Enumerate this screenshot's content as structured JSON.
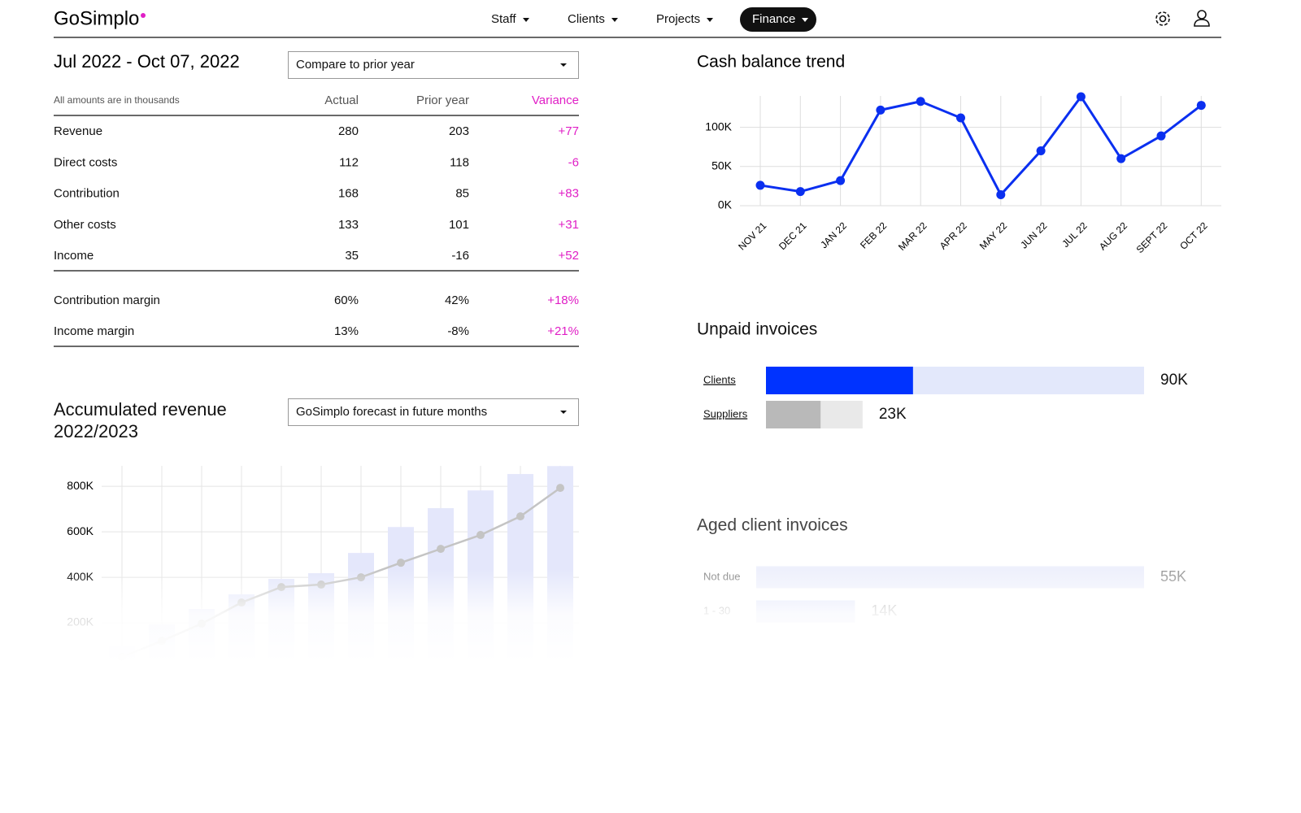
{
  "nav": {
    "brand": "GoSimplo",
    "items": [
      "Staff",
      "Clients",
      "Projects",
      "Finance"
    ],
    "active": 3
  },
  "period": {
    "title": "Jul 2022 - Oct 07, 2022",
    "compare": "Compare to prior year"
  },
  "table": {
    "note": "All amounts are in thousands",
    "headers": [
      "Actual",
      "Prior year",
      "Variance"
    ],
    "rows": [
      [
        "Revenue",
        "280",
        "203",
        "+77"
      ],
      [
        "Direct costs",
        "112",
        "118",
        "-6"
      ],
      [
        "Contribution",
        "168",
        "85",
        "+83"
      ],
      [
        "Other costs",
        "133",
        "101",
        "+31"
      ],
      [
        "Income",
        "35",
        "-16",
        "+52"
      ]
    ],
    "margin_rows": [
      [
        "Contribution margin",
        "60%",
        "42%",
        "+18%"
      ],
      [
        "Income margin",
        "13%",
        "-8%",
        "+21%"
      ]
    ],
    "variance_color": "#e01fc6"
  },
  "forecast_select": "GoSimplo forecast in future months",
  "chart_data": [
    {
      "type": "line",
      "title": "Cash balance trend",
      "categories": [
        "NOV 21",
        "DEC 21",
        "JAN 22",
        "FEB 22",
        "MAR 22",
        "APR 22",
        "MAY 22",
        "JUN 22",
        "JUL 22",
        "AUG 22",
        "SEPT 22",
        "OCT 22"
      ],
      "values": [
        26000,
        18000,
        32000,
        122000,
        133000,
        112000,
        14000,
        70000,
        139000,
        60000,
        89000,
        128000
      ],
      "color": "#0a2ff0",
      "ylim": [
        0,
        140000
      ],
      "yticks": [
        {
          "value": 0,
          "label": "0K"
        },
        {
          "value": 50000,
          "label": "50K"
        },
        {
          "value": 100000,
          "label": "100K"
        }
      ],
      "grid": true
    },
    {
      "type": "hbar",
      "title": "Unpaid invoices",
      "categories": [
        "Clients",
        "Suppliers"
      ],
      "values": [
        90000,
        23000
      ],
      "value_labels": [
        "90K",
        "23K"
      ],
      "overdue_values": [
        35000,
        13000
      ],
      "colors": [
        "#0033ff",
        "#b9b9b9"
      ],
      "track_colors": [
        "#e3e8fb",
        "#e9e9e9"
      ],
      "xlim": [
        0,
        90000
      ]
    },
    {
      "type": "bar",
      "title": "Accumulated revenue 2022/2023",
      "values": [
        96000,
        193000,
        261000,
        325000,
        393000,
        418000,
        507000,
        621000,
        704000,
        782000,
        854000,
        889000
      ],
      "color": "#e4e7fb",
      "line": {
        "values": [
          50000,
          120000,
          196000,
          289000,
          357000,
          368000,
          400000,
          464000,
          525000,
          586000,
          668000,
          793000
        ],
        "color": "#c4c4c4"
      },
      "ylim": [
        0,
        890000
      ],
      "yticks": [
        {
          "value": 200000,
          "label": "200K"
        },
        {
          "value": 400000,
          "label": "400K"
        },
        {
          "value": 600000,
          "label": "600K"
        },
        {
          "value": 800000,
          "label": "800K"
        }
      ],
      "grid": true
    },
    {
      "type": "hbar",
      "title": "Aged client invoices",
      "categories": [
        "Not due",
        "1 - 30"
      ],
      "values": [
        55000,
        14000
      ],
      "value_labels": [
        "55K",
        "14K"
      ],
      "colors": [
        "#eef0fc",
        "#dfe3fa"
      ],
      "xlim": [
        0,
        55000
      ]
    }
  ]
}
